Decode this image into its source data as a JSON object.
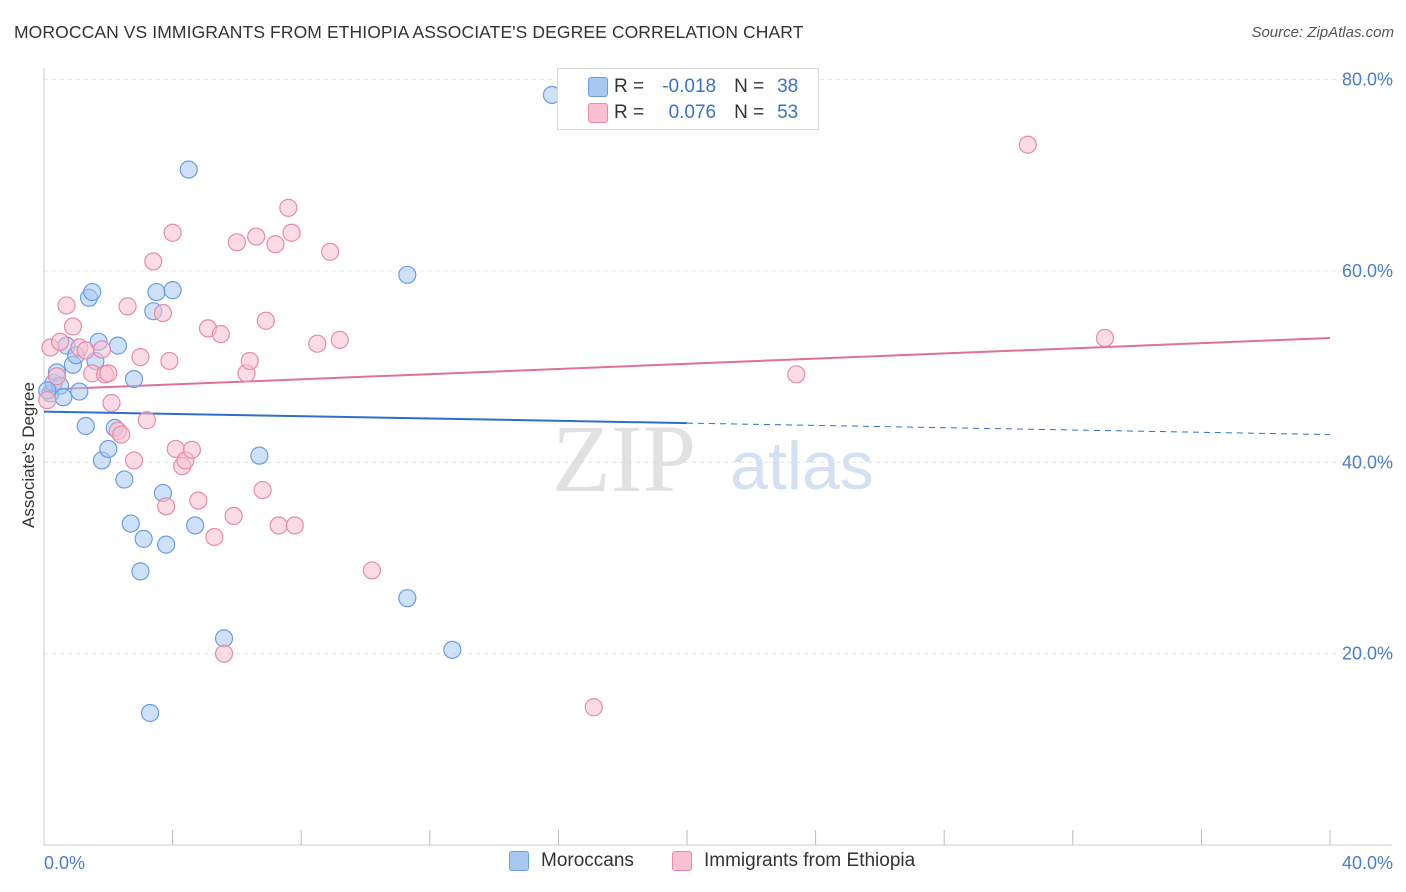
{
  "title": "MOROCCAN VS IMMIGRANTS FROM ETHIOPIA ASSOCIATE'S DEGREE CORRELATION CHART",
  "source": "Source: ZipAtlas.com",
  "watermark": {
    "zip": "ZIP",
    "atlas": "atlas"
  },
  "stats": {
    "rows": [
      {
        "r_label": "R =",
        "r_value": "-0.018",
        "n_label": "N =",
        "n_value": "38",
        "color": "#a8c8f0",
        "border": "#6a9ee0"
      },
      {
        "r_label": "R =",
        "r_value": "0.076",
        "n_label": "N =",
        "n_value": "53",
        "color": "#f8c0d0",
        "border": "#e88aa8"
      }
    ]
  },
  "legend": [
    {
      "label": "Moroccans",
      "color": "#a8c8f0",
      "border": "#6a9ee0"
    },
    {
      "label": "Immigrants from Ethiopia",
      "color": "#f8c0d0",
      "border": "#e88aa8"
    }
  ],
  "chart_data": {
    "type": "scatter",
    "xlabel": "",
    "ylabel": "Associate's Degree",
    "xlim": [
      0,
      40
    ],
    "ylim": [
      0,
      82
    ],
    "x_tick_labels": [
      {
        "value": 0,
        "label": "0.0%"
      },
      {
        "value": 40,
        "label": "40.0%"
      }
    ],
    "x_minor_ticks": [
      4,
      8,
      12,
      16,
      20,
      24,
      28,
      32,
      36,
      40
    ],
    "y_tick_labels": [
      {
        "value": 20,
        "label": "20.0%"
      },
      {
        "value": 40,
        "label": "40.0%"
      },
      {
        "value": 60,
        "label": "60.0%"
      },
      {
        "value": 80,
        "label": "80.0%"
      }
    ],
    "grid": true,
    "series": [
      {
        "name": "Moroccans",
        "color": "#6a9ee0",
        "fill": "#a8c8f0",
        "trend": {
          "x0": 0,
          "y0": 45.3,
          "x1": 20,
          "y1": 44.1,
          "dashed_to_x": 40,
          "dashed_to_y": 42.9,
          "color": "#2f6fcc"
        },
        "points": [
          [
            0.2,
            47.2
          ],
          [
            0.3,
            48.3
          ],
          [
            0.4,
            49.4
          ],
          [
            0.5,
            48.0
          ],
          [
            0.6,
            46.8
          ],
          [
            0.7,
            52.2
          ],
          [
            0.9,
            50.2
          ],
          [
            1.0,
            51.2
          ],
          [
            1.1,
            47.4
          ],
          [
            1.3,
            43.8
          ],
          [
            1.4,
            57.2
          ],
          [
            1.5,
            57.8
          ],
          [
            1.6,
            50.6
          ],
          [
            1.7,
            52.6
          ],
          [
            1.8,
            40.2
          ],
          [
            2.0,
            41.4
          ],
          [
            2.2,
            43.6
          ],
          [
            2.3,
            52.2
          ],
          [
            2.5,
            38.2
          ],
          [
            2.7,
            33.6
          ],
          [
            2.8,
            48.7
          ],
          [
            3.0,
            28.6
          ],
          [
            3.1,
            32.0
          ],
          [
            3.3,
            13.8
          ],
          [
            3.4,
            55.8
          ],
          [
            3.5,
            57.8
          ],
          [
            3.7,
            36.8
          ],
          [
            3.8,
            31.4
          ],
          [
            4.0,
            58.0
          ],
          [
            4.5,
            70.6
          ],
          [
            4.7,
            33.4
          ],
          [
            5.6,
            21.6
          ],
          [
            6.7,
            40.7
          ],
          [
            11.3,
            59.6
          ],
          [
            11.3,
            25.8
          ],
          [
            12.7,
            20.4
          ],
          [
            15.8,
            78.4
          ],
          [
            0.1,
            47.5
          ]
        ]
      },
      {
        "name": "Immigrants from Ethiopia",
        "color": "#e88aa8",
        "fill": "#f8c0d0",
        "trend": {
          "x0": 0,
          "y0": 47.6,
          "x1": 40,
          "y1": 53.0,
          "color": "#e0709a"
        },
        "points": [
          [
            0.1,
            46.5
          ],
          [
            0.2,
            52.0
          ],
          [
            0.4,
            49.0
          ],
          [
            0.5,
            52.6
          ],
          [
            0.7,
            56.4
          ],
          [
            0.9,
            54.2
          ],
          [
            1.1,
            52.0
          ],
          [
            1.3,
            51.7
          ],
          [
            1.5,
            49.3
          ],
          [
            1.8,
            51.8
          ],
          [
            1.9,
            49.2
          ],
          [
            2.0,
            49.3
          ],
          [
            2.1,
            46.2
          ],
          [
            2.3,
            43.3
          ],
          [
            2.4,
            42.9
          ],
          [
            2.6,
            56.3
          ],
          [
            2.8,
            40.2
          ],
          [
            3.0,
            51.0
          ],
          [
            3.2,
            44.4
          ],
          [
            3.4,
            61.0
          ],
          [
            3.7,
            55.6
          ],
          [
            3.8,
            35.4
          ],
          [
            3.9,
            50.6
          ],
          [
            4.0,
            64.0
          ],
          [
            4.1,
            41.4
          ],
          [
            4.3,
            39.6
          ],
          [
            4.4,
            40.2
          ],
          [
            4.6,
            41.3
          ],
          [
            4.8,
            36.0
          ],
          [
            5.1,
            54.0
          ],
          [
            5.3,
            32.2
          ],
          [
            5.5,
            53.4
          ],
          [
            5.6,
            20.0
          ],
          [
            5.9,
            34.4
          ],
          [
            6.0,
            63.0
          ],
          [
            6.3,
            49.3
          ],
          [
            6.4,
            50.6
          ],
          [
            6.6,
            63.6
          ],
          [
            6.8,
            37.1
          ],
          [
            6.9,
            54.8
          ],
          [
            7.2,
            62.8
          ],
          [
            7.3,
            33.4
          ],
          [
            7.6,
            66.6
          ],
          [
            7.7,
            64.0
          ],
          [
            7.8,
            33.4
          ],
          [
            8.5,
            52.4
          ],
          [
            8.9,
            62.0
          ],
          [
            9.2,
            52.8
          ],
          [
            10.2,
            28.7
          ],
          [
            17.1,
            14.4
          ],
          [
            23.4,
            49.2
          ],
          [
            30.6,
            73.2
          ],
          [
            33.0,
            53.0
          ]
        ]
      }
    ]
  }
}
